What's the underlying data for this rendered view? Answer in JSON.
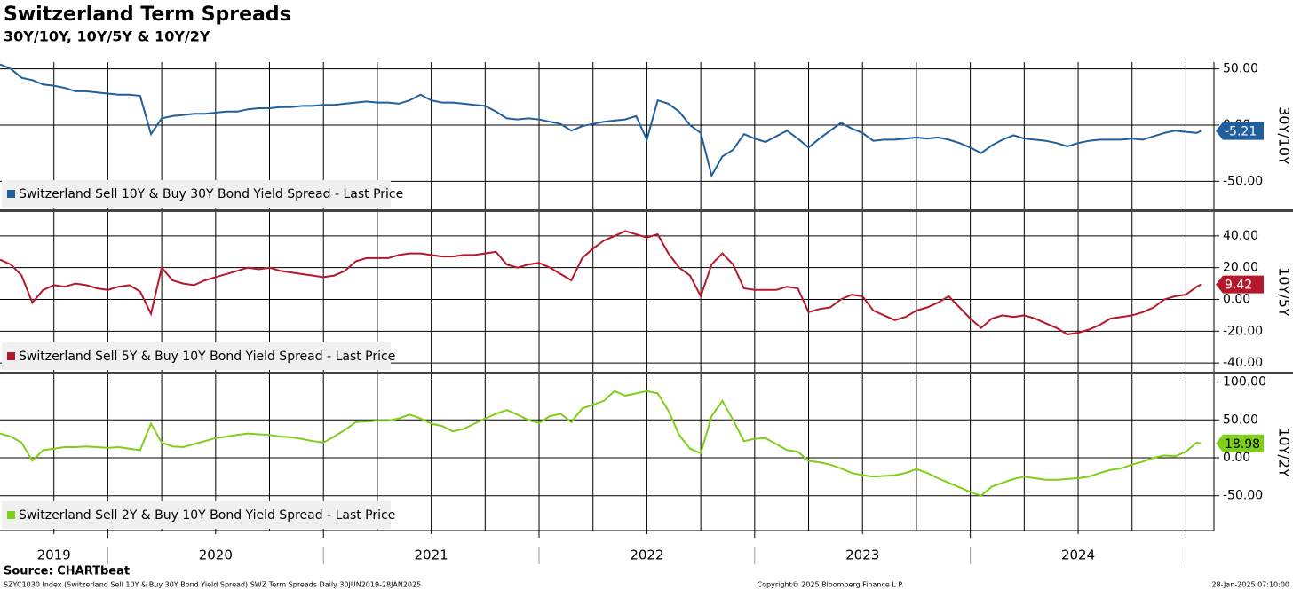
{
  "chart_data": {
    "type": "line",
    "title": "Switzerland Term Spreads",
    "subtitle": "30Y/10Y, 10Y/5Y & 10Y/2Y",
    "xlim": [
      2019.5,
      2025.13
    ],
    "xticks": [
      {
        "value": 2019.75,
        "label": "2019"
      },
      {
        "value": 2020.5,
        "label": "2020"
      },
      {
        "value": 2021.5,
        "label": "2021"
      },
      {
        "value": 2022.5,
        "label": "2022"
      },
      {
        "value": 2023.5,
        "label": "2023"
      },
      {
        "value": 2024.5,
        "label": "2024"
      }
    ],
    "x": [
      2019.5,
      2019.55,
      2019.6,
      2019.65,
      2019.7,
      2019.75,
      2019.8,
      2019.85,
      2019.9,
      2019.95,
      2020,
      2020.05,
      2020.1,
      2020.15,
      2020.2,
      2020.25,
      2020.3,
      2020.35,
      2020.4,
      2020.45,
      2020.5,
      2020.55,
      2020.6,
      2020.65,
      2020.7,
      2020.75,
      2020.8,
      2020.85,
      2020.9,
      2020.95,
      2021,
      2021.05,
      2021.1,
      2021.15,
      2021.2,
      2021.25,
      2021.3,
      2021.35,
      2021.4,
      2021.45,
      2021.5,
      2021.55,
      2021.6,
      2021.65,
      2021.7,
      2021.75,
      2021.8,
      2021.85,
      2021.9,
      2021.95,
      2022,
      2022.05,
      2022.1,
      2022.15,
      2022.2,
      2022.25,
      2022.3,
      2022.35,
      2022.4,
      2022.45,
      2022.5,
      2022.55,
      2022.6,
      2022.65,
      2022.7,
      2022.75,
      2022.8,
      2022.85,
      2022.9,
      2022.95,
      2023,
      2023.05,
      2023.1,
      2023.15,
      2023.2,
      2023.25,
      2023.3,
      2023.35,
      2023.4,
      2023.45,
      2023.5,
      2023.55,
      2023.6,
      2023.65,
      2023.7,
      2023.75,
      2023.8,
      2023.85,
      2023.9,
      2023.95,
      2024,
      2024.05,
      2024.1,
      2024.15,
      2024.2,
      2024.25,
      2024.3,
      2024.35,
      2024.4,
      2024.45,
      2024.5,
      2024.55,
      2024.6,
      2024.65,
      2024.7,
      2024.75,
      2024.8,
      2024.85,
      2024.9,
      2024.95,
      2025,
      2025.05,
      2025.07
    ],
    "series": [
      {
        "name": "Switzerland Sell 10Y & Buy 30Y Bond Yield Spread - Last Price",
        "axis_label": "30Y/10Y",
        "color": "#1f5f9e",
        "ylim": [
          -75,
          56
        ],
        "yticks": [
          {
            "value": 50,
            "label": "50.00"
          },
          {
            "value": 0,
            "label": "0.00"
          },
          {
            "value": -50,
            "label": "-50.00"
          }
        ],
        "values": [
          54,
          50,
          42,
          40,
          36,
          35,
          33,
          30,
          30,
          29,
          28,
          27,
          27,
          26,
          -8,
          6,
          8,
          9,
          10,
          10,
          11,
          12,
          12,
          14,
          15,
          15,
          16,
          16,
          17,
          17,
          18,
          18,
          19,
          20,
          21,
          20,
          20,
          19,
          22,
          27,
          22,
          20,
          20,
          19,
          18,
          17,
          12,
          6,
          5,
          6,
          5,
          3,
          1,
          -5,
          -1,
          1,
          3,
          4,
          5,
          8,
          -13,
          22,
          19,
          12,
          0,
          -7,
          -45,
          -28,
          -22,
          -8,
          -12,
          -15,
          -10,
          -5,
          -12,
          -20,
          -12,
          -5,
          2,
          -3,
          -7,
          -14,
          -13,
          -13,
          -12,
          -11,
          -12,
          -11,
          -13,
          -16,
          -20,
          -25,
          -18,
          -13,
          -9,
          -12,
          -13,
          -14,
          -16,
          -19,
          -16,
          -14,
          -13,
          -13,
          -13,
          -12,
          -13,
          -10,
          -7,
          -5,
          -6,
          -7,
          -5.21
        ]
      },
      {
        "name": "Switzerland Sell 5Y & Buy 10Y Bond Yield Spread - Last Price",
        "axis_label": "10Y/5Y",
        "color": "#b5182b",
        "ylim": [
          -45.5,
          55
        ],
        "yticks": [
          {
            "value": 40,
            "label": "40.00"
          },
          {
            "value": 20,
            "label": "20.00"
          },
          {
            "value": 0,
            "label": "0.00"
          },
          {
            "value": -20,
            "label": "-20.00"
          },
          {
            "value": -40,
            "label": "-40.00"
          }
        ],
        "values": [
          25,
          22,
          15,
          -2,
          6,
          9,
          8,
          10,
          9,
          7,
          6,
          8,
          9,
          5,
          -9,
          20,
          12,
          10,
          9,
          12,
          14,
          16,
          18,
          20,
          19,
          20,
          18,
          17,
          16,
          15,
          14,
          15,
          18,
          24,
          26,
          26,
          26,
          28,
          29,
          29,
          28,
          27,
          27,
          28,
          28,
          29,
          30,
          22,
          20,
          22,
          23,
          20,
          16,
          12,
          26,
          32,
          37,
          40,
          43,
          41,
          39,
          41,
          29,
          20,
          15,
          2,
          22,
          29,
          22,
          7,
          6,
          6,
          6,
          8,
          7,
          -8,
          -6,
          -5,
          0,
          3,
          2,
          -7,
          -10,
          -13,
          -11,
          -7,
          -5,
          -2,
          2,
          -5,
          -12,
          -18,
          -12,
          -10,
          -11,
          -10,
          -12,
          -15,
          -18,
          -22,
          -21,
          -19,
          -16,
          -12,
          -11,
          -10,
          -8,
          -5,
          0,
          2,
          3,
          8,
          9.42
        ]
      },
      {
        "name": "Switzerland Sell 2Y & Buy 10Y Bond Yield Spread - Last Price",
        "axis_label": "10Y/2Y",
        "color": "#7fcf1a",
        "ylim": [
          -96,
          110
        ],
        "yticks": [
          {
            "value": 100,
            "label": "100.00"
          },
          {
            "value": 50,
            "label": "50.00"
          },
          {
            "value": 0,
            "label": "0.00"
          },
          {
            "value": -50,
            "label": "-50.00"
          }
        ],
        "values": [
          32,
          28,
          20,
          -4,
          10,
          12,
          14,
          14,
          15,
          14,
          13,
          14,
          12,
          10,
          45,
          20,
          15,
          14,
          18,
          22,
          26,
          28,
          30,
          32,
          31,
          30,
          28,
          27,
          25,
          22,
          20,
          28,
          37,
          47,
          48,
          49,
          49,
          52,
          57,
          52,
          45,
          42,
          35,
          38,
          45,
          52,
          58,
          63,
          57,
          50,
          46,
          55,
          58,
          47,
          65,
          70,
          75,
          88,
          82,
          85,
          88,
          85,
          62,
          30,
          12,
          6,
          55,
          75,
          50,
          22,
          25,
          26,
          18,
          10,
          8,
          -4,
          -6,
          -9,
          -14,
          -20,
          -23,
          -25,
          -24,
          -23,
          -20,
          -15,
          -20,
          -27,
          -33,
          -39,
          -45,
          -50,
          -38,
          -33,
          -28,
          -25,
          -27,
          -29,
          -29,
          -28,
          -27,
          -25,
          -20,
          -16,
          -14,
          -9,
          -5,
          0,
          3,
          2,
          8,
          20,
          18.98
        ]
      }
    ],
    "source": "Source: CHARTbeat",
    "footer_left": "SZYC1030 Index (Switzerland Sell 10Y & Buy 30Y Bond Yield Spread) SWZ Term Spreads  Daily 30JUN2019-28JAN2025",
    "footer_center": "Copyright© 2025 Bloomberg Finance L.P.",
    "footer_right": "28-Jan-2025 07:10:00"
  }
}
